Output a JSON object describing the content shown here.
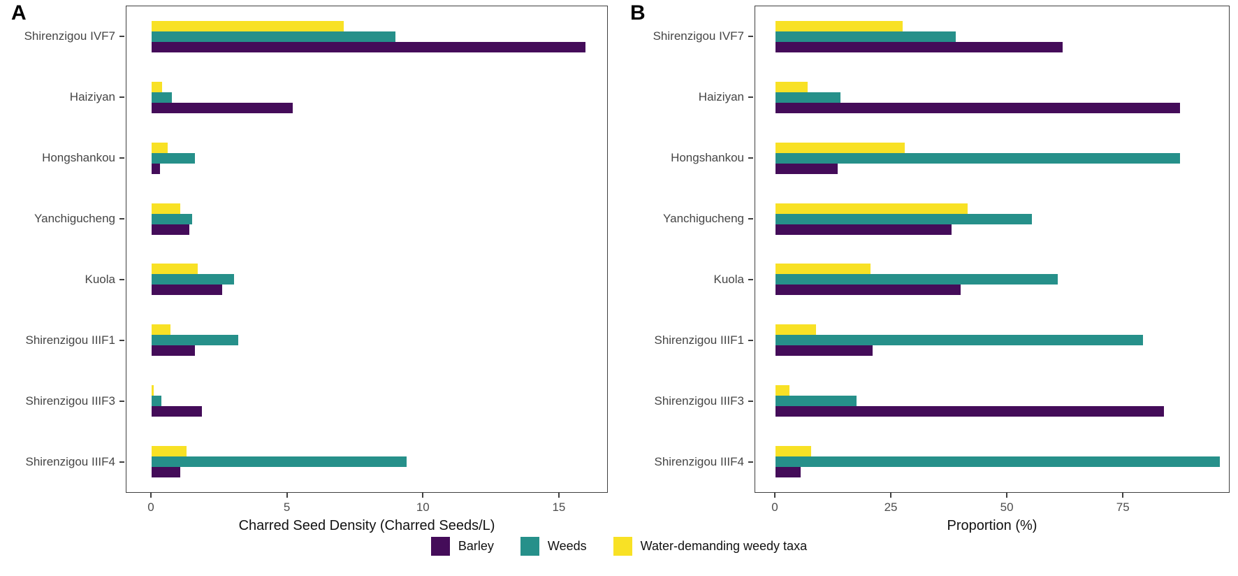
{
  "legend": {
    "items": [
      {
        "label": "Barley",
        "color": "#440c59"
      },
      {
        "label": "Weeds",
        "color": "#26908a"
      },
      {
        "label": "Water-demanding weedy taxa",
        "color": "#f8e125"
      }
    ]
  },
  "chart_data": [
    {
      "type": "bar",
      "orientation": "horizontal",
      "panel_label": "A",
      "xlabel": "Charred Seed Density (Charred Seeds/L)",
      "xlim": [
        0,
        16.8
      ],
      "xticks": [
        0,
        5,
        10,
        15
      ],
      "grid": false,
      "legend_position": "bottom",
      "categories": [
        "Shirenzigou IVF7",
        "Haiziyan",
        "Hongshankou",
        "Yanchigucheng",
        "Kuola",
        "Shirenzigou IIIF1",
        "Shirenzigou IIIF3",
        "Shirenzigou IIIF4"
      ],
      "series": [
        {
          "name": "Barley",
          "color": "#440c59",
          "values": [
            16.0,
            5.2,
            0.3,
            1.4,
            2.6,
            1.6,
            1.85,
            1.05
          ]
        },
        {
          "name": "Weeds",
          "color": "#26908a",
          "values": [
            9.0,
            0.75,
            1.6,
            1.5,
            3.05,
            3.2,
            0.37,
            9.4
          ]
        },
        {
          "name": "Water-demanding weedy taxa",
          "color": "#f8e125",
          "values": [
            7.1,
            0.4,
            0.6,
            1.05,
            1.7,
            0.7,
            0.07,
            1.3
          ]
        }
      ],
      "group_order_top_to_bottom": [
        "Water-demanding weedy taxa",
        "Weeds",
        "Barley"
      ]
    },
    {
      "type": "bar",
      "orientation": "horizontal",
      "panel_label": "B",
      "xlabel": "Proportion (%)",
      "xlim": [
        0,
        98
      ],
      "xticks": [
        0,
        25,
        50,
        75
      ],
      "grid": false,
      "legend_position": "bottom",
      "categories": [
        "Shirenzigou IVF7",
        "Haiziyan",
        "Hongshankou",
        "Yanchigucheng",
        "Kuola",
        "Shirenzigou IIIF1",
        "Shirenzigou IIIF3",
        "Shirenzigou IIIF4"
      ],
      "series": [
        {
          "name": "Barley",
          "color": "#440c59",
          "values": [
            62,
            87.5,
            13.5,
            38,
            40,
            21,
            84,
            5.5
          ]
        },
        {
          "name": "Weeds",
          "color": "#26908a",
          "values": [
            39,
            14,
            87.5,
            55.5,
            61,
            79.5,
            17.5,
            96
          ]
        },
        {
          "name": "Water-demanding weedy taxa",
          "color": "#f8e125",
          "values": [
            27.5,
            7,
            28,
            41.5,
            20.5,
            8.8,
            3,
            7.7
          ]
        }
      ],
      "group_order_top_to_bottom": [
        "Water-demanding weedy taxa",
        "Weeds",
        "Barley"
      ]
    }
  ]
}
